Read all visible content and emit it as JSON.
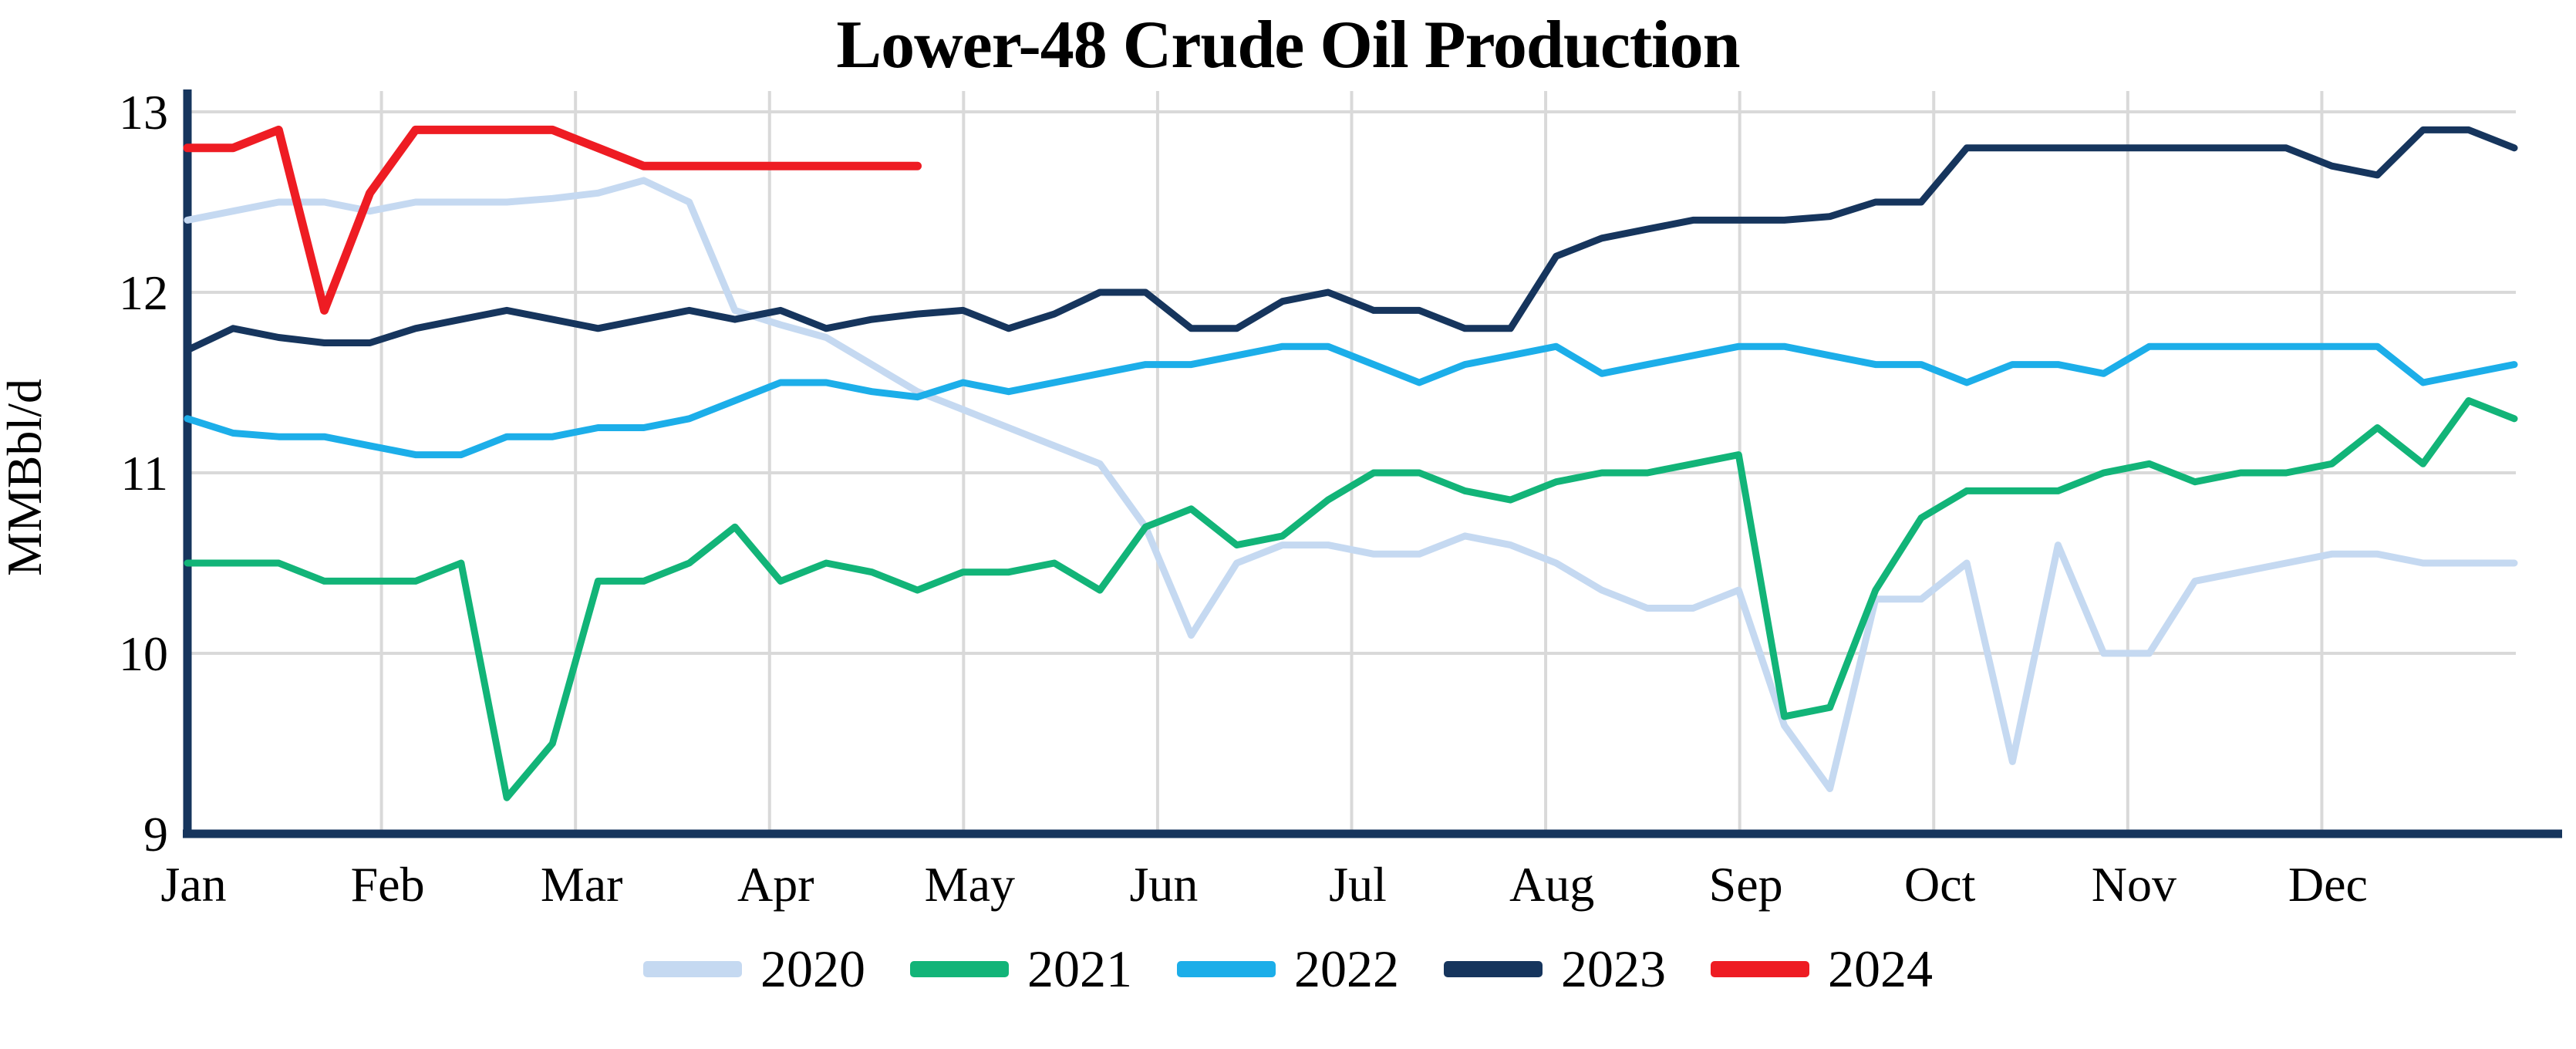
{
  "chart_data": {
    "type": "line",
    "title": "Lower-48 Crude Oil Production",
    "ylabel": "MMBbl/d",
    "ylim": [
      9,
      13
    ],
    "yticks": [
      9,
      10,
      11,
      12,
      13
    ],
    "x_axis": {
      "unit": "weekly observations, Jan through Dec",
      "month_labels": [
        "Jan",
        "Feb",
        "Mar",
        "Apr",
        "May",
        "Jun",
        "Jul",
        "Aug",
        "Sep",
        "Oct",
        "Nov",
        "Dec"
      ]
    },
    "grid": {
      "horizontal": "on at 10,11,12,13",
      "vertical": "on at month starts Feb-Dec",
      "color": "#d9d9d9"
    },
    "axis_color": "#16355d",
    "legend_position": "bottom-center",
    "series": [
      {
        "name": "2020",
        "color": "#c5d9f1",
        "values": [
          12.4,
          12.45,
          12.5,
          12.5,
          12.45,
          12.5,
          12.5,
          12.5,
          12.52,
          12.55,
          12.62,
          12.5,
          11.9,
          11.82,
          11.75,
          11.6,
          11.45,
          11.35,
          11.25,
          11.15,
          11.05,
          10.7,
          10.1,
          10.5,
          10.6,
          10.6,
          10.55,
          10.55,
          10.65,
          10.6,
          10.5,
          10.35,
          10.25,
          10.25,
          10.35,
          9.6,
          9.25,
          10.3,
          10.3,
          10.5,
          9.4,
          10.6,
          10.0,
          10.0,
          10.4,
          10.45,
          10.5,
          10.55,
          10.55,
          10.5,
          10.5,
          10.5
        ]
      },
      {
        "name": "2021",
        "color": "#12b478",
        "values": [
          10.5,
          10.5,
          10.5,
          10.4,
          10.4,
          10.4,
          10.5,
          9.2,
          9.5,
          10.4,
          10.4,
          10.5,
          10.7,
          10.4,
          10.5,
          10.45,
          10.35,
          10.45,
          10.45,
          10.5,
          10.35,
          10.7,
          10.8,
          10.6,
          10.65,
          10.85,
          11.0,
          11.0,
          10.9,
          10.85,
          10.95,
          11.0,
          11.0,
          11.05,
          11.1,
          9.65,
          9.7,
          10.35,
          10.75,
          10.9,
          10.9,
          10.9,
          11.0,
          11.05,
          10.95,
          11.0,
          11.0,
          11.05,
          11.25,
          11.05,
          11.4,
          11.3
        ]
      },
      {
        "name": "2022",
        "color": "#1caee9",
        "values": [
          11.3,
          11.22,
          11.2,
          11.2,
          11.15,
          11.1,
          11.1,
          11.2,
          11.2,
          11.25,
          11.25,
          11.3,
          11.4,
          11.5,
          11.5,
          11.45,
          11.42,
          11.5,
          11.45,
          11.5,
          11.55,
          11.6,
          11.6,
          11.65,
          11.7,
          11.7,
          11.6,
          11.5,
          11.6,
          11.65,
          11.7,
          11.55,
          11.6,
          11.65,
          11.7,
          11.7,
          11.65,
          11.6,
          11.6,
          11.5,
          11.6,
          11.6,
          11.55,
          11.7,
          11.7,
          11.7,
          11.7,
          11.7,
          11.7,
          11.5,
          11.55,
          11.6
        ]
      },
      {
        "name": "2023",
        "color": "#16355d",
        "values": [
          11.68,
          11.8,
          11.75,
          11.72,
          11.72,
          11.8,
          11.85,
          11.9,
          11.85,
          11.8,
          11.85,
          11.9,
          11.85,
          11.9,
          11.8,
          11.85,
          11.88,
          11.9,
          11.8,
          11.88,
          12.0,
          12.0,
          11.8,
          11.8,
          11.95,
          12.0,
          11.9,
          11.9,
          11.8,
          11.8,
          12.2,
          12.3,
          12.35,
          12.4,
          12.4,
          12.4,
          12.42,
          12.5,
          12.5,
          12.8,
          12.8,
          12.8,
          12.8,
          12.8,
          12.8,
          12.8,
          12.8,
          12.7,
          12.65,
          12.9,
          12.9,
          12.8
        ]
      },
      {
        "name": "2024",
        "color": "#ee1c23",
        "values": [
          12.8,
          12.8,
          12.9,
          11.9,
          12.55,
          12.9,
          12.9,
          12.9,
          12.9,
          12.8,
          12.7,
          12.7,
          12.7,
          12.7,
          12.7,
          12.7,
          12.7
        ]
      }
    ],
    "line_widths": {
      "default": 9,
      "2024": 11
    }
  }
}
